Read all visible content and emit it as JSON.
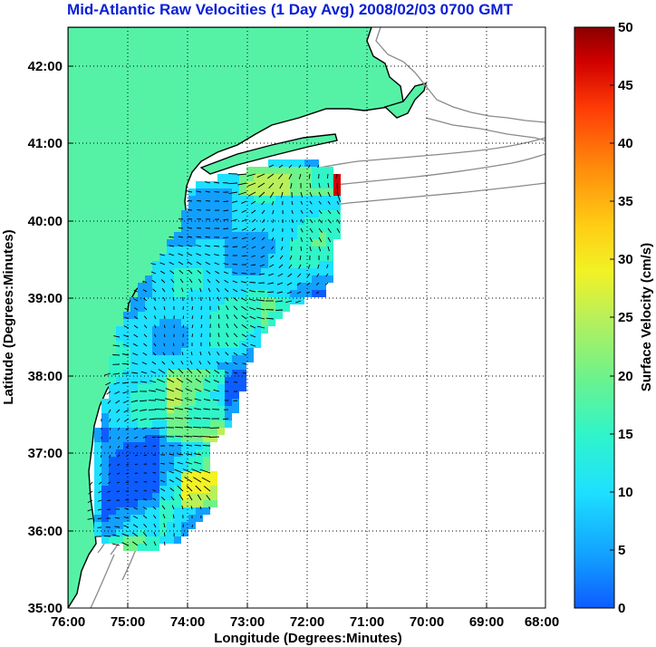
{
  "title": "Mid-Atlantic Raw Velocities (1 Day Avg) 2008/02/03 0700 GMT",
  "xlabel": "Longitude (Degrees:Minutes)",
  "ylabel": "Latitude (Degrees:Minutes)",
  "x_ticks": [
    "76:00",
    "75:00",
    "74:00",
    "73:00",
    "72:00",
    "71:00",
    "70:00",
    "69:00",
    "68:00"
  ],
  "y_ticks": [
    "42:00",
    "41:00",
    "40:00",
    "39:00",
    "38:00",
    "37:00",
    "36:00",
    "35:00"
  ],
  "colorbar": {
    "label": "Surface Velocity (cm/s)",
    "ticks": [
      "50",
      "45",
      "40",
      "35",
      "30",
      "25",
      "20",
      "15",
      "10",
      "5",
      "0"
    ],
    "min": 0,
    "max": 50,
    "colormap": [
      "#0d5cff",
      "#12a0ff",
      "#1ee0ff",
      "#30f5c8",
      "#6ff28a",
      "#b9f05a",
      "#f2f224",
      "#ffcc14",
      "#ff8a0c",
      "#ff3c06",
      "#d10000",
      "#8a0000"
    ]
  },
  "map": {
    "lon_range": [
      -76,
      -68
    ],
    "lat_range": [
      35,
      42.5
    ],
    "land_color": "#55f2a6",
    "grid": "dotted"
  }
}
